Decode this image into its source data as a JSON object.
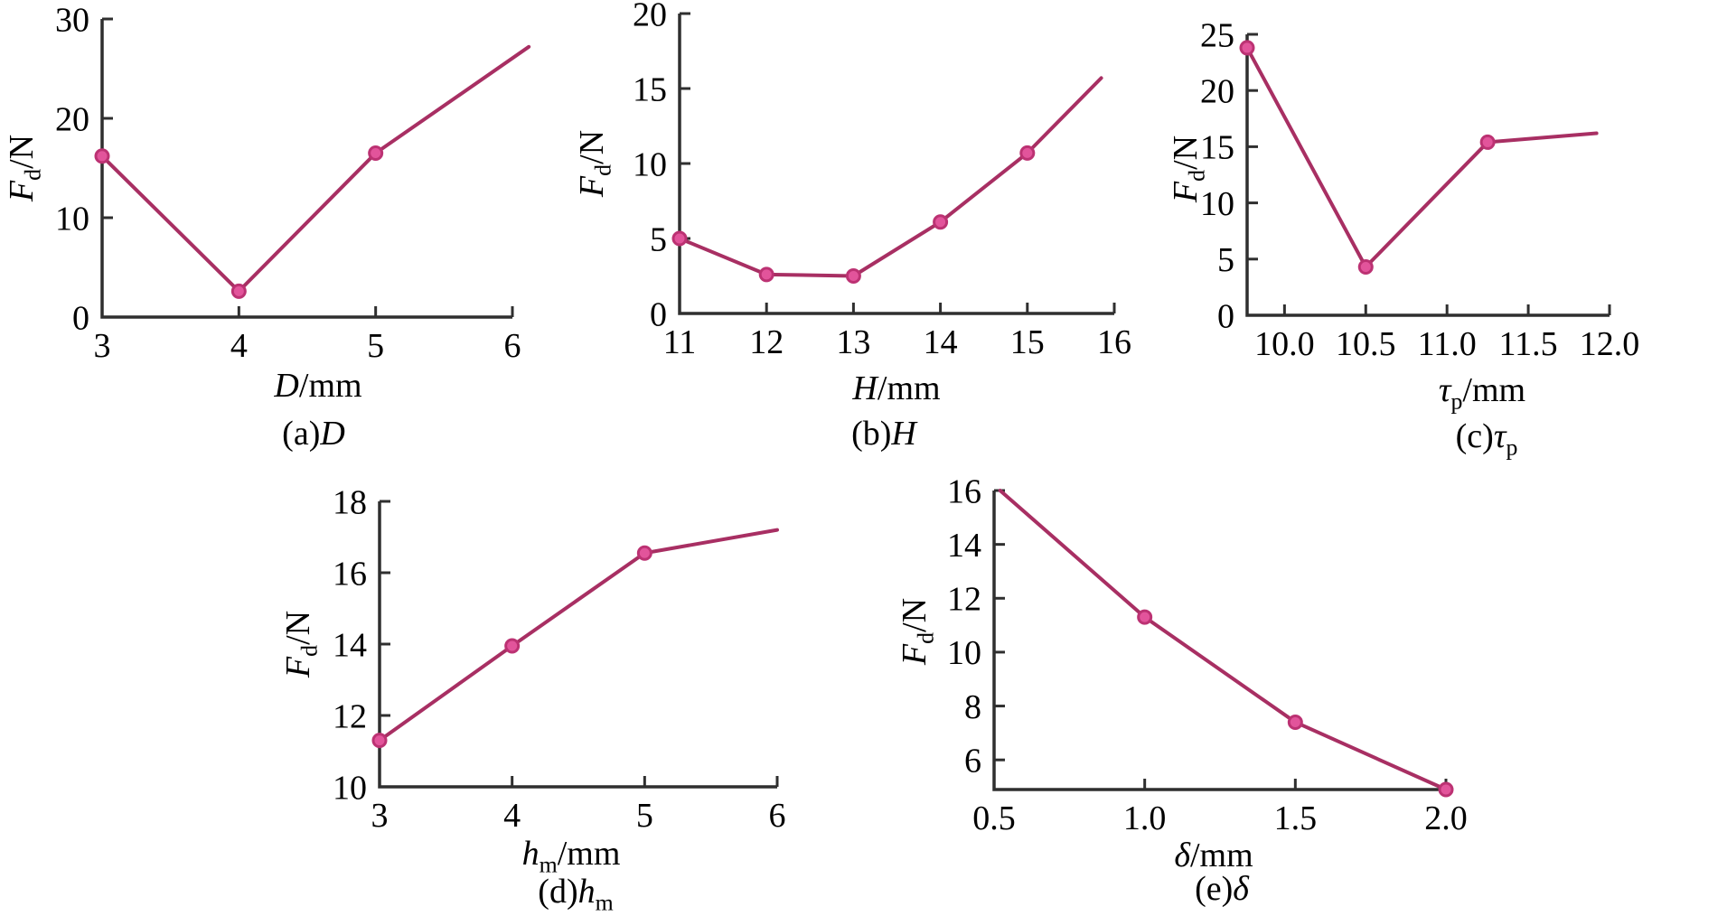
{
  "page": {
    "background": "#ffffff"
  },
  "colors": {
    "line": "#a82f63",
    "marker_fill": "#e2549b",
    "marker_stroke": "#bc3273",
    "axis": "#2f2f2f",
    "text": "#000000"
  },
  "chart_data": [
    {
      "id": "a",
      "type": "line",
      "xlabel": {
        "italic": "D",
        "sub": "",
        "unit": "/mm"
      },
      "ylabel": {
        "italic": "F",
        "sub": "d",
        "unit": "/N"
      },
      "caption": {
        "prefix": "(a)",
        "italic": "D",
        "sub": ""
      },
      "xlim": [
        3,
        6
      ],
      "ylim": [
        0,
        30
      ],
      "x_ticks": [
        {
          "v": 3,
          "label": "3",
          "mark": false
        },
        {
          "v": 4,
          "label": "4",
          "mark": true
        },
        {
          "v": 5,
          "label": "5",
          "mark": true
        },
        {
          "v": 6,
          "label": "6",
          "mark": true
        }
      ],
      "y_ticks": [
        {
          "v": 0,
          "label": "0",
          "mark": false
        },
        {
          "v": 10,
          "label": "10",
          "mark": true
        },
        {
          "v": 20,
          "label": "20",
          "mark": true
        },
        {
          "v": 30,
          "label": "30",
          "mark": true
        }
      ],
      "markers": [
        [
          3,
          16.2
        ],
        [
          4,
          2.6
        ],
        [
          5,
          16.5
        ]
      ],
      "line": [
        [
          3,
          16.2
        ],
        [
          4,
          2.6
        ],
        [
          5,
          16.5
        ],
        [
          6.12,
          27.2
        ]
      ]
    },
    {
      "id": "b",
      "type": "line",
      "xlabel": {
        "italic": "H",
        "sub": "",
        "unit": "/mm"
      },
      "ylabel": {
        "italic": "F",
        "sub": "d",
        "unit": "/N"
      },
      "caption": {
        "prefix": "(b)",
        "italic": "H",
        "sub": ""
      },
      "xlim": [
        11,
        16
      ],
      "ylim": [
        0,
        20
      ],
      "x_ticks": [
        {
          "v": 11,
          "label": "11",
          "mark": false
        },
        {
          "v": 12,
          "label": "12",
          "mark": true
        },
        {
          "v": 13,
          "label": "13",
          "mark": true
        },
        {
          "v": 14,
          "label": "14",
          "mark": true
        },
        {
          "v": 15,
          "label": "15",
          "mark": true
        },
        {
          "v": 16,
          "label": "16",
          "mark": true
        }
      ],
      "y_ticks": [
        {
          "v": 0,
          "label": "0",
          "mark": false
        },
        {
          "v": 5,
          "label": "5",
          "mark": true
        },
        {
          "v": 10,
          "label": "10",
          "mark": true
        },
        {
          "v": 15,
          "label": "15",
          "mark": true
        },
        {
          "v": 20,
          "label": "20",
          "mark": true
        }
      ],
      "markers": [
        [
          11,
          5.0
        ],
        [
          12,
          2.6
        ],
        [
          13,
          2.5
        ],
        [
          14,
          6.1
        ],
        [
          15,
          10.7
        ]
      ],
      "line": [
        [
          11,
          5.0
        ],
        [
          12,
          2.6
        ],
        [
          13,
          2.5
        ],
        [
          14,
          6.1
        ],
        [
          15,
          10.7
        ],
        [
          15.85,
          15.7
        ]
      ]
    },
    {
      "id": "c",
      "type": "line",
      "xlabel": {
        "italic": "τ",
        "sub": "p",
        "unit": "/mm"
      },
      "ylabel": {
        "italic": "F",
        "sub": "d",
        "unit": "/N"
      },
      "caption": {
        "prefix": "(c)",
        "italic": "τ",
        "sub": "p"
      },
      "xlim": [
        9.77,
        12.0
      ],
      "ylim": [
        0,
        25
      ],
      "x_ticks": [
        {
          "v": 10.0,
          "label": "10.0",
          "mark": true
        },
        {
          "v": 10.5,
          "label": "10.5",
          "mark": true
        },
        {
          "v": 11.0,
          "label": "11.0",
          "mark": true
        },
        {
          "v": 11.5,
          "label": "11.5",
          "mark": true
        },
        {
          "v": 12.0,
          "label": "12.0",
          "mark": true
        }
      ],
      "y_ticks": [
        {
          "v": 0,
          "label": "0",
          "mark": false
        },
        {
          "v": 5,
          "label": "5",
          "mark": true
        },
        {
          "v": 10,
          "label": "10",
          "mark": true
        },
        {
          "v": 15,
          "label": "15",
          "mark": true
        },
        {
          "v": 20,
          "label": "20",
          "mark": true
        },
        {
          "v": 25,
          "label": "25",
          "mark": true
        }
      ],
      "markers": [
        [
          9.77,
          23.8
        ],
        [
          10.5,
          4.3
        ],
        [
          11.25,
          15.4
        ]
      ],
      "line": [
        [
          9.77,
          23.8
        ],
        [
          10.5,
          4.3
        ],
        [
          11.25,
          15.4
        ],
        [
          11.92,
          16.2
        ]
      ]
    },
    {
      "id": "d",
      "type": "line",
      "xlabel": {
        "italic": "h",
        "sub": "m",
        "unit": "/mm"
      },
      "ylabel": {
        "italic": "F",
        "sub": "d",
        "unit": "/N"
      },
      "caption": {
        "prefix": "(d)",
        "italic": "h",
        "sub": "m"
      },
      "xlim": [
        3,
        6
      ],
      "ylim": [
        10,
        18
      ],
      "x_ticks": [
        {
          "v": 3,
          "label": "3",
          "mark": false
        },
        {
          "v": 4,
          "label": "4",
          "mark": true
        },
        {
          "v": 5,
          "label": "5",
          "mark": true
        },
        {
          "v": 6,
          "label": "6",
          "mark": true
        }
      ],
      "y_ticks": [
        {
          "v": 10,
          "label": "10",
          "mark": false
        },
        {
          "v": 12,
          "label": "12",
          "mark": true
        },
        {
          "v": 14,
          "label": "14",
          "mark": true
        },
        {
          "v": 16,
          "label": "16",
          "mark": true
        },
        {
          "v": 18,
          "label": "18",
          "mark": true
        }
      ],
      "markers": [
        [
          3,
          11.3
        ],
        [
          4,
          13.95
        ],
        [
          5,
          16.55
        ]
      ],
      "line": [
        [
          3,
          11.3
        ],
        [
          4,
          13.95
        ],
        [
          5,
          16.55
        ],
        [
          6,
          17.2
        ]
      ]
    },
    {
      "id": "e",
      "type": "line",
      "xlabel": {
        "italic": "δ",
        "sub": "",
        "unit": "/mm"
      },
      "ylabel": {
        "italic": "F",
        "sub": "d",
        "unit": "/N"
      },
      "caption": {
        "prefix": "(e)",
        "italic": "δ",
        "sub": ""
      },
      "xlim": [
        0.5,
        2.0
      ],
      "ylim": [
        4.9,
        16
      ],
      "x_ticks": [
        {
          "v": 0.5,
          "label": "0.5",
          "mark": false
        },
        {
          "v": 1.0,
          "label": "1.0",
          "mark": true
        },
        {
          "v": 1.5,
          "label": "1.5",
          "mark": true
        },
        {
          "v": 2.0,
          "label": "2.0",
          "mark": true
        }
      ],
      "y_ticks": [
        {
          "v": 6,
          "label": "6",
          "mark": true
        },
        {
          "v": 8,
          "label": "8",
          "mark": true
        },
        {
          "v": 10,
          "label": "10",
          "mark": true
        },
        {
          "v": 12,
          "label": "12",
          "mark": true
        },
        {
          "v": 14,
          "label": "14",
          "mark": true
        },
        {
          "v": 16,
          "label": "16",
          "mark": true
        }
      ],
      "markers": [
        [
          1.0,
          11.3
        ],
        [
          1.5,
          7.4
        ],
        [
          2.0,
          4.9
        ]
      ],
      "line": [
        [
          0.52,
          16
        ],
        [
          1.0,
          11.3
        ],
        [
          1.5,
          7.4
        ],
        [
          2.0,
          4.9
        ]
      ]
    }
  ]
}
